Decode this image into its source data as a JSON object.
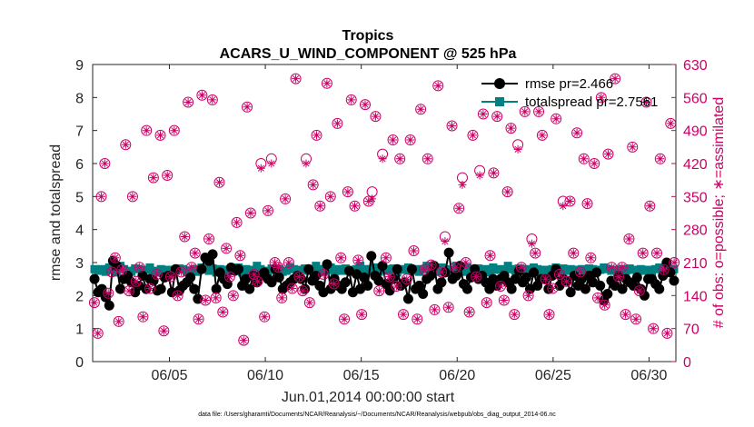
{
  "chart_data": {
    "type": "line",
    "title": "Tropics",
    "subtitle": "ACARS_U_WIND_COMPONENT @ 525 hPa",
    "xlabel": "Jun.01,2014 00:00:00 start",
    "ylabel": "rmse and totalspread",
    "ylabel_right": "# of obs: o=possible; ∗=assimilated",
    "footnote": "data file: /Users/gharamti/Documents/NCAR/Reanalysis/~/Documents/NCAR/Reanalysis/webpub/obs_diag_output_2014-06.nc",
    "xlim": [
      1.0,
      31.4
    ],
    "ylim": [
      0,
      9
    ],
    "ylim_right": [
      0,
      630
    ],
    "x_ticks": [
      5,
      10,
      15,
      20,
      25,
      30
    ],
    "x_tick_labels": [
      "06/05",
      "06/10",
      "06/15",
      "06/20",
      "06/25",
      "06/30"
    ],
    "y_ticks": [
      "0",
      "1",
      "2",
      "3",
      "4",
      "5",
      "6",
      "7",
      "8",
      "9"
    ],
    "y_right_ticks": [
      "0",
      "70",
      "140",
      "210",
      "280",
      "350",
      "420",
      "490",
      "560",
      "630"
    ],
    "legend": {
      "position": "top-right",
      "entries": [
        {
          "label": "rmse pr=2.466",
          "color": "#000000"
        },
        {
          "label": "totalspread pr=2.7561",
          "color": "#008080"
        }
      ]
    },
    "series": [
      {
        "name": "rmse pr=2.466",
        "color": "#000000",
        "axis": "left",
        "values": [
          2.5,
          2.1,
          2.2,
          1.95,
          1.7,
          3.05,
          2.9,
          2.2,
          2.5,
          2.6,
          2.4,
          2.1,
          2.3,
          2.6,
          2.2,
          2.5,
          2.45,
          2.15,
          2.2,
          2.55,
          2.6,
          2.1,
          2.8,
          2.15,
          2.3,
          2.4,
          2.55,
          2.2,
          1.9,
          2.8,
          3.15,
          3.05,
          3.25,
          2.2,
          2.7,
          2.5,
          2.35,
          2.85,
          2.75,
          2.8,
          2.3,
          2.5,
          2.2,
          2.6,
          2.4,
          2.6,
          2.7,
          2.5,
          2.4,
          2.8,
          2.55,
          2.2,
          2.3,
          2.4,
          2.5,
          2.6,
          2.5,
          2.2,
          2.8,
          2.45,
          2.6,
          2.3,
          2.1,
          2.95,
          2.2,
          2.5,
          2.3,
          2.2,
          2.4,
          2.75,
          2.1,
          2.65,
          2.2,
          2.55,
          2.3,
          3.2,
          2.6,
          2.45,
          2.9,
          2.35,
          2.15,
          2.5,
          2.8,
          2.3,
          2.4,
          1.9,
          2.8,
          2.2,
          2.3,
          2.05,
          2.5,
          2.6,
          2.9,
          2.2,
          2.4,
          2.7,
          3.3,
          2.5,
          2.6,
          2.9,
          2.35,
          2.2,
          2.55,
          2.8,
          2.5,
          2.6,
          2.4,
          2.2,
          2.5,
          2.3,
          2.5,
          2.6,
          2.4,
          2.2,
          2.5,
          2.75,
          2.4,
          2.55,
          2.2,
          2.7,
          2.3,
          2.5,
          2.5,
          2.2,
          2.6,
          2.8,
          2.3,
          2.5,
          2.45,
          2.1,
          2.6,
          2.3,
          2.5,
          2.2,
          2.6,
          2.4,
          2.7,
          2.3,
          1.85,
          2.05,
          2.45,
          2.3,
          2.6,
          2.2,
          2.5,
          2.4,
          2.3,
          2.55,
          2.2,
          2.0,
          2.5,
          2.5,
          2.35,
          2.2,
          2.6,
          3.0,
          2.7,
          2.45
        ]
      },
      {
        "name": "totalspread pr=2.7561",
        "color": "#008080",
        "axis": "left",
        "values": [
          2.8,
          2.75,
          2.8,
          2.72,
          2.85,
          2.78,
          2.7,
          2.9,
          2.8,
          2.75,
          2.72,
          2.82,
          2.8,
          2.7,
          2.78,
          2.85,
          2.75,
          2.7,
          2.8,
          2.72,
          2.78,
          2.7,
          2.75,
          2.82,
          2.8,
          2.7,
          2.76,
          2.8,
          2.72,
          2.85,
          2.8,
          2.75,
          2.82,
          2.7,
          2.8,
          2.78,
          2.72,
          2.8,
          2.75,
          2.85,
          2.7,
          2.8,
          2.72,
          2.78,
          2.9,
          2.8,
          2.75,
          2.7,
          2.82,
          2.78,
          2.8,
          2.72,
          2.75,
          2.85,
          2.8,
          2.7,
          2.78,
          2.82,
          2.75,
          2.8,
          2.9,
          2.8,
          2.72,
          2.78,
          2.85,
          2.7,
          2.8,
          2.75,
          2.82,
          2.78,
          2.72,
          2.8,
          2.9,
          2.8,
          2.75,
          2.8,
          2.85,
          2.72,
          2.78,
          2.8,
          2.75,
          2.82,
          2.7,
          2.8,
          2.78,
          2.85,
          2.75,
          2.8,
          2.72,
          2.8,
          2.9,
          2.78,
          2.8,
          2.72,
          2.85,
          2.8,
          2.75,
          2.78,
          2.9,
          2.8,
          2.72,
          2.85,
          2.8,
          2.75,
          2.82,
          2.78,
          2.8,
          2.7,
          2.85,
          2.78,
          2.8,
          2.72,
          2.9,
          2.8,
          2.75,
          2.82,
          2.78,
          2.8,
          2.72,
          2.85,
          2.8,
          2.75,
          2.78,
          2.72,
          2.8,
          2.85,
          2.78,
          2.82,
          2.75,
          2.8,
          2.7,
          2.78,
          2.8,
          2.75,
          2.82,
          2.8,
          2.72,
          2.78,
          2.85,
          2.8,
          2.75,
          2.78,
          2.7,
          2.8,
          2.75,
          2.82,
          2.78,
          2.72,
          2.8,
          2.75,
          2.78,
          2.7,
          2.8,
          2.85,
          2.8,
          2.72,
          2.78,
          2.8
        ]
      },
      {
        "name": "# obs possible (o)",
        "color": "#cc0066",
        "axis": "right",
        "values": [
          125,
          60,
          350,
          420,
          145,
          190,
          220,
          85,
          195,
          460,
          150,
          350,
          170,
          200,
          95,
          490,
          155,
          390,
          185,
          480,
          65,
          395,
          180,
          490,
          140,
          190,
          265,
          550,
          200,
          230,
          90,
          565,
          130,
          260,
          555,
          135,
          380,
          105,
          240,
          180,
          140,
          295,
          225,
          45,
          540,
          315,
          185,
          170,
          420,
          95,
          320,
          430,
          210,
          200,
          135,
          345,
          210,
          155,
          600,
          180,
          150,
          430,
          125,
          375,
          480,
          330,
          185,
          590,
          350,
          165,
          505,
          220,
          90,
          360,
          555,
          330,
          215,
          100,
          545,
          340,
          360,
          520,
          150,
          440,
          220,
          180,
          470,
          160,
          430,
          100,
          175,
          470,
          235,
          90,
          535,
          195,
          430,
          205,
          110,
          585,
          190,
          265,
          115,
          500,
          200,
          325,
          390,
          210,
          105,
          480,
          180,
          405,
          525,
          125,
          225,
          400,
          520,
          160,
          130,
          360,
          495,
          100,
          460,
          200,
          530,
          140,
          260,
          230,
          530,
          480,
          175,
          100,
          155,
          515,
          185,
          340,
          170,
          340,
          230,
          485,
          190,
          430,
          335,
          220,
          420,
          135,
          560,
          120,
          440,
          200,
          600,
          180,
          200,
          100,
          260,
          455,
          90,
          150,
          230,
          550,
          330,
          70,
          230,
          430,
          195,
          60,
          505,
          210
        ]
      },
      {
        "name": "# obs assimilated (*)",
        "color": "#cc0066",
        "axis": "right",
        "values": [
          125,
          60,
          350,
          420,
          145,
          190,
          220,
          85,
          195,
          460,
          150,
          350,
          170,
          200,
          95,
          490,
          155,
          390,
          185,
          480,
          65,
          395,
          180,
          490,
          140,
          190,
          265,
          550,
          200,
          230,
          90,
          565,
          130,
          260,
          555,
          135,
          380,
          105,
          240,
          180,
          140,
          295,
          225,
          45,
          540,
          315,
          185,
          170,
          410,
          95,
          320,
          420,
          210,
          200,
          135,
          345,
          210,
          155,
          600,
          180,
          150,
          420,
          125,
          375,
          480,
          330,
          185,
          590,
          350,
          165,
          505,
          220,
          90,
          360,
          555,
          330,
          215,
          100,
          545,
          340,
          345,
          520,
          150,
          430,
          220,
          180,
          470,
          160,
          430,
          100,
          175,
          470,
          235,
          90,
          535,
          195,
          430,
          205,
          110,
          585,
          190,
          255,
          115,
          500,
          200,
          325,
          375,
          210,
          105,
          480,
          180,
          395,
          525,
          125,
          225,
          400,
          520,
          160,
          130,
          360,
          495,
          100,
          450,
          200,
          530,
          140,
          250,
          230,
          530,
          480,
          175,
          100,
          155,
          515,
          185,
          330,
          170,
          340,
          230,
          485,
          190,
          430,
          335,
          220,
          420,
          135,
          560,
          120,
          440,
          200,
          600,
          180,
          200,
          100,
          260,
          455,
          90,
          150,
          230,
          550,
          330,
          70,
          230,
          430,
          195,
          60,
          505,
          210
        ]
      }
    ]
  }
}
